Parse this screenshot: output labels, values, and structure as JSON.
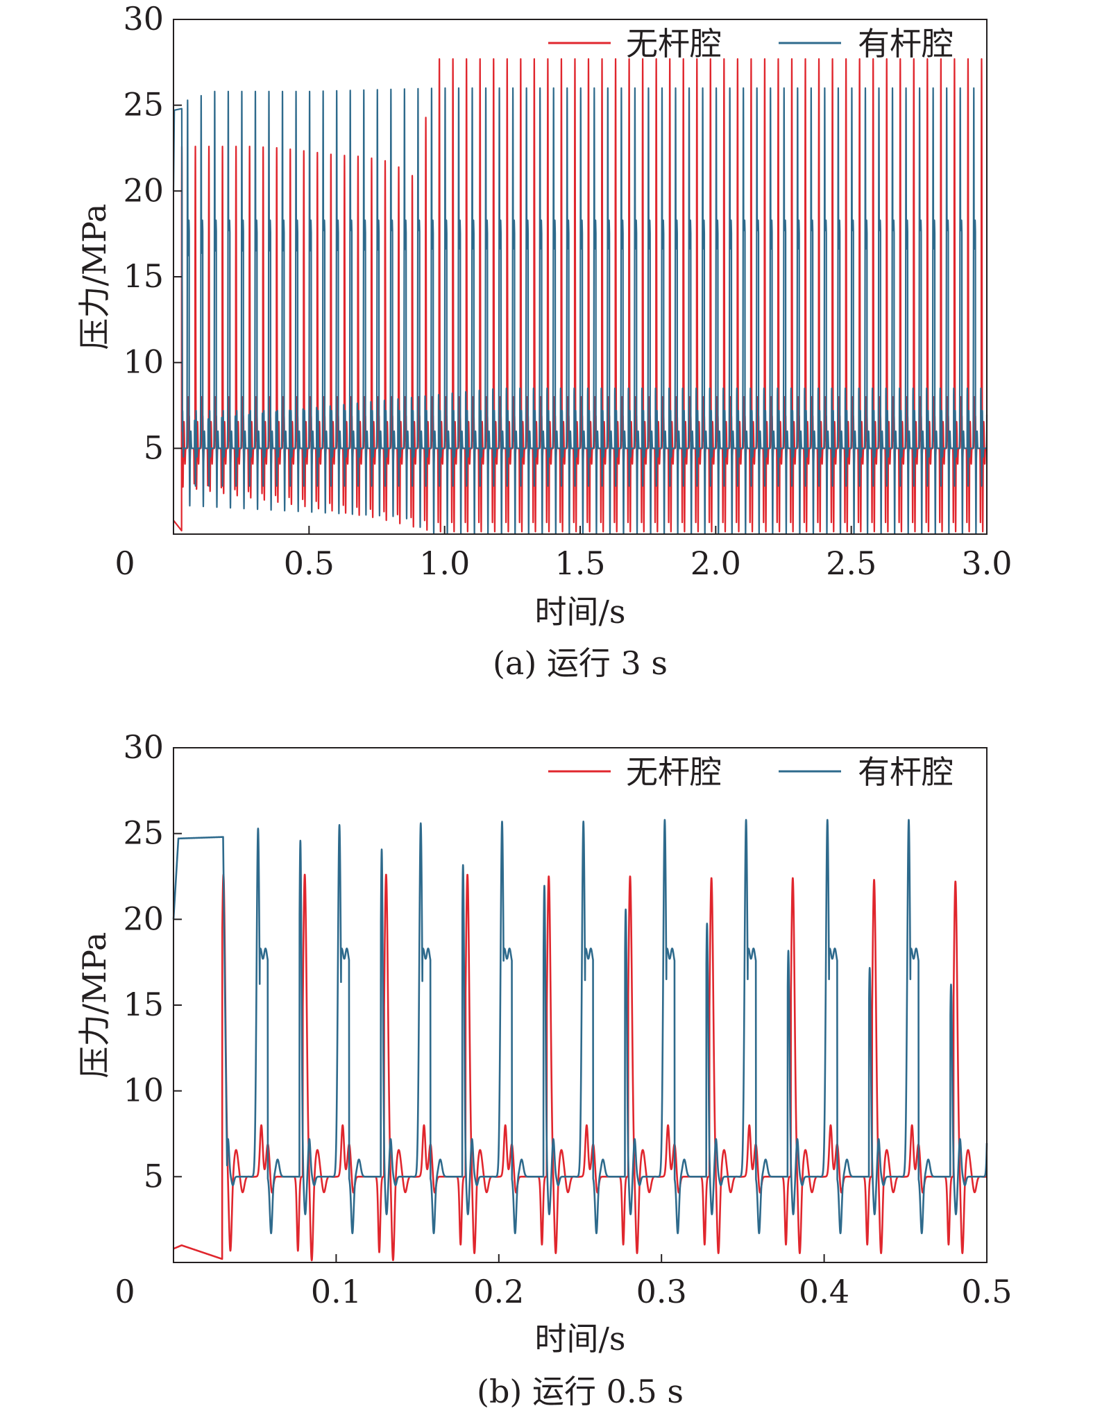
{
  "colors": {
    "rodless": "#e0262d",
    "rod": "#2e6a8c",
    "axis": "#231f20"
  },
  "chart_data": [
    {
      "type": "line",
      "caption": "(a) 运行 3 s",
      "xlabel": "时间/s",
      "ylabel": "压力/MPa",
      "xlim": [
        0,
        3.0
      ],
      "ylim": [
        0,
        30
      ],
      "xticks": [
        "0",
        "0.5",
        "1.0",
        "1.5",
        "2.0",
        "2.5",
        "3.0"
      ],
      "yticks": [
        "5",
        "10",
        "15",
        "20",
        "25",
        "30"
      ],
      "legend_position": "top-right",
      "series": [
        {
          "name": "无杆腔",
          "color": "#e0262d",
          "cycle_period_s": 0.025,
          "first_peak_s": 0.0345,
          "baseline": 5.0,
          "points": [
            [
              0,
              0.8
            ],
            [
              0.03,
              0.2
            ],
            [
              0.0345,
              22.4
            ],
            [
              0.28,
              22.4
            ],
            [
              0.4,
              22.3
            ],
            [
              0.5,
              22.1
            ],
            [
              0.6,
              21.9
            ],
            [
              0.7,
              21.8
            ],
            [
              0.8,
              21.5
            ],
            [
              0.9,
              20.5
            ],
            [
              0.96,
              27.5
            ],
            [
              1.2,
              27.5
            ],
            [
              1.5,
              27.5
            ],
            [
              2.0,
              27.5
            ],
            [
              2.5,
              27.5
            ],
            [
              3.0,
              27.5
            ]
          ],
          "trough_levels": [
            [
              0,
              2.9
            ],
            [
              0.75,
              1.0
            ],
            [
              0.96,
              0.2
            ],
            [
              3.0,
              0.2
            ]
          ]
        },
        {
          "name": "有杆腔",
          "color": "#2e6a8c",
          "cycle_period_s": 0.025,
          "first_peak_s": 0.0525,
          "baseline": 5.0,
          "points": [
            [
              0,
              24.7
            ],
            [
              0.03,
              24.8
            ],
            [
              0.0525,
              25.3
            ],
            [
              0.15,
              25.8
            ],
            [
              0.5,
              25.8
            ],
            [
              1.0,
              26.0
            ],
            [
              1.5,
              26.0
            ],
            [
              2.0,
              26.0
            ],
            [
              2.5,
              26.0
            ],
            [
              3.0,
              26.0
            ]
          ],
          "plateau_levels": [
            [
              0,
              18.0
            ],
            [
              3.0,
              18.0
            ]
          ],
          "trough_levels": [
            [
              0,
              1.7
            ],
            [
              0.85,
              1.0
            ],
            [
              0.95,
              0.0
            ],
            [
              3.0,
              0.0
            ]
          ]
        }
      ]
    },
    {
      "type": "line",
      "caption": "(b) 运行 0.5 s",
      "xlabel": "时间/s",
      "ylabel": "压力/MPa",
      "xlim": [
        0,
        0.5
      ],
      "ylim": [
        0,
        30
      ],
      "xticks": [
        "0",
        "0.1",
        "0.2",
        "0.3",
        "0.4",
        "0.5"
      ],
      "yticks": [
        "5",
        "10",
        "15",
        "20",
        "25",
        "30"
      ],
      "legend_position": "top-right",
      "series": [
        {
          "name": "无杆腔",
          "color": "#e0262d",
          "baseline": 5.0,
          "cycle_period_s": 0.025,
          "peaks": [
            [
              0.0295,
              22.4
            ],
            [
              0.0795,
              22.4
            ],
            [
              0.1295,
              22.4
            ],
            [
              0.1795,
              22.4
            ],
            [
              0.2295,
              22.3
            ],
            [
              0.2795,
              22.3
            ],
            [
              0.3295,
              22.2
            ],
            [
              0.3795,
              22.2
            ],
            [
              0.4295,
              22.1
            ],
            [
              0.4795,
              22.0
            ]
          ],
          "dip_minimum": [
            [
              0.0,
              0.8
            ],
            [
              0.03,
              0.2
            ],
            [
              0.0355,
              0.8
            ],
            [
              0.076,
              0.2
            ],
            [
              0.126,
              0.1
            ],
            [
              0.176,
              0.6
            ],
            [
              0.226,
              0.6
            ],
            [
              0.276,
              0.6
            ],
            [
              0.326,
              0.6
            ],
            [
              0.376,
              0.6
            ],
            [
              0.426,
              0.6
            ],
            [
              0.476,
              0.6
            ]
          ]
        },
        {
          "name": "有杆腔",
          "color": "#2e6a8c",
          "baseline": 5.0,
          "cycle_period_s": 0.025,
          "peaks": [
            [
              0.0165,
              24.8
            ],
            [
              0.0525,
              25.3
            ],
            [
              0.1025,
              25.5
            ],
            [
              0.1525,
              25.6
            ],
            [
              0.2025,
              25.7
            ],
            [
              0.2525,
              25.7
            ],
            [
              0.3025,
              25.8
            ],
            [
              0.3525,
              25.8
            ],
            [
              0.4025,
              25.8
            ],
            [
              0.4525,
              25.8
            ]
          ],
          "minor_peaks": [
            [
              0.0765,
              24.6
            ],
            [
              0.1265,
              24.1
            ],
            [
              0.1765,
              23.2
            ],
            [
              0.2265,
              22.0
            ],
            [
              0.2765,
              20.6
            ],
            [
              0.3265,
              19.8
            ],
            [
              0.3765,
              18.2
            ],
            [
              0.4265,
              17.2
            ],
            [
              0.4765,
              16.2
            ]
          ],
          "plateau_level": 18.0,
          "trough_level": 1.7
        }
      ]
    }
  ]
}
